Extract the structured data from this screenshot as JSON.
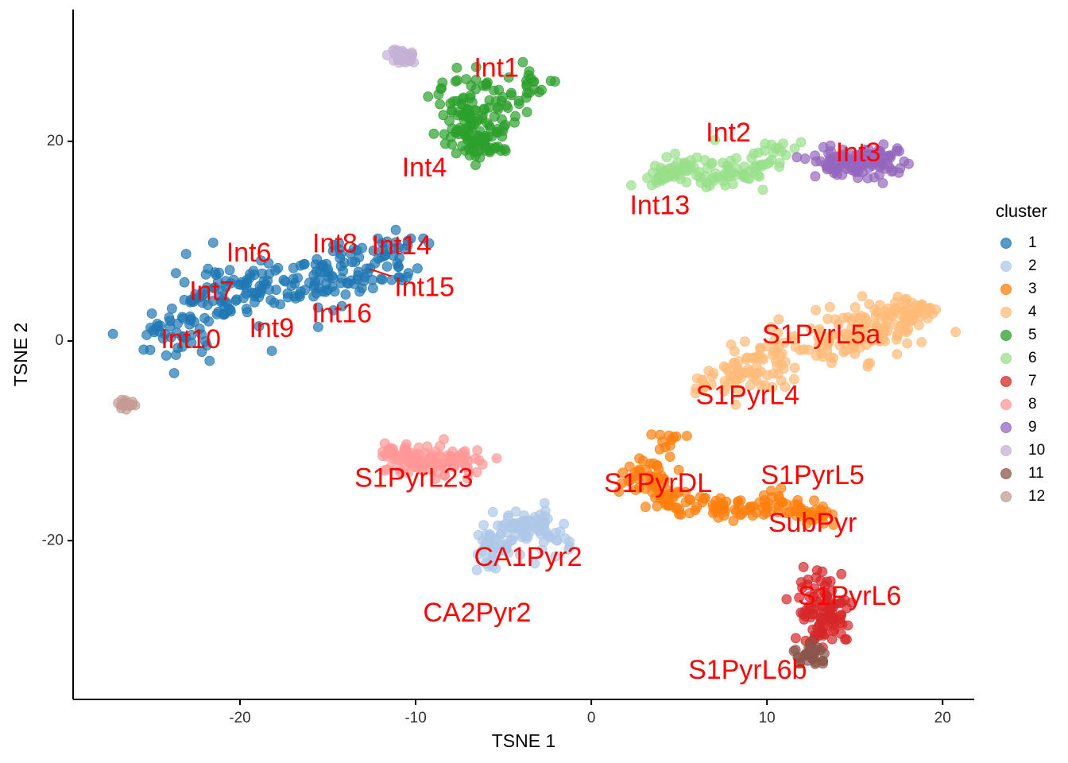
{
  "colors": {
    "1": "#1f77b4",
    "2": "#aec7e8",
    "3": "#ff7f0e",
    "4": "#ffbb78",
    "5": "#2ca02c",
    "6": "#98df8a",
    "7": "#d62728",
    "8": "#ff9896",
    "9": "#9467bd",
    "10": "#c5b0d5",
    "11": "#8c564b",
    "12": "#c49c94",
    "label": "#ff0000"
  },
  "chart_data": {
    "type": "scatter",
    "title": "",
    "xlabel": "TSNE 1",
    "ylabel": "TSNE 2",
    "xlim": [
      -29.5,
      21.8
    ],
    "ylim": [
      -35.9,
      33.2
    ],
    "xticks": [
      -20,
      -10,
      0,
      10,
      20
    ],
    "yticks": [
      -20,
      0,
      20
    ],
    "xtick_labels": [
      "-20",
      "-10",
      "0",
      "10",
      "20"
    ],
    "ytick_labels": [
      "-20",
      "0",
      "20"
    ],
    "grid": false,
    "legend": {
      "title": "cluster",
      "position": "right",
      "entries": [
        "1",
        "2",
        "3",
        "4",
        "5",
        "6",
        "7",
        "8",
        "9",
        "10",
        "11",
        "12"
      ]
    },
    "clusters": [
      {
        "id": "1",
        "segments": [
          [
            -24.5,
            -0.5,
            1.3
          ],
          [
            -22.5,
            3,
            1.6
          ],
          [
            -19.5,
            6,
            1.8
          ],
          [
            -16,
            5,
            1.8
          ],
          [
            -13.5,
            7,
            1.6
          ],
          [
            -11,
            9.5,
            1.2
          ]
        ],
        "n": 260
      },
      {
        "id": "2",
        "segments": [
          [
            -6,
            -23,
            1.0
          ],
          [
            -5,
            -19,
            0.9
          ],
          [
            -3.5,
            -18,
            0.8
          ],
          [
            -2,
            -20.5,
            0.8
          ]
        ],
        "n": 110
      },
      {
        "id": "3",
        "segments": [
          [
            4.5,
            -9.5,
            0.9
          ],
          [
            3,
            -14,
            0.8
          ],
          [
            5,
            -16.5,
            0.9
          ],
          [
            8,
            -16.5,
            0.9
          ],
          [
            11,
            -16.5,
            0.9
          ],
          [
            13.5,
            -18,
            0.6
          ]
        ],
        "n": 180
      },
      {
        "id": "4",
        "segments": [
          [
            7,
            -4,
            1.0
          ],
          [
            10,
            -2,
            1.6
          ],
          [
            13.5,
            0,
            1.8
          ],
          [
            17,
            2,
            1.5
          ],
          [
            19,
            3,
            0.8
          ]
        ],
        "n": 240
      },
      {
        "id": "5",
        "segments": [
          [
            -7,
            26.5,
            1.3
          ],
          [
            -7,
            22,
            1.2
          ],
          [
            -6.5,
            19,
            1.0
          ],
          [
            -3,
            27,
            1.0
          ]
        ],
        "n": 170
      },
      {
        "id": "6",
        "segments": [
          [
            3.5,
            16,
            0.7
          ],
          [
            5.5,
            17.5,
            0.9
          ],
          [
            8,
            16.5,
            1.0
          ],
          [
            11,
            19,
            0.9
          ]
        ],
        "n": 120
      },
      {
        "id": "7",
        "segments": [
          [
            13,
            -23.5,
            0.9
          ],
          [
            13,
            -27,
            1.0
          ],
          [
            13.5,
            -30,
            0.7
          ]
        ],
        "n": 100
      },
      {
        "id": "8",
        "segments": [
          [
            -11.5,
            -11.5,
            0.8
          ],
          [
            -9,
            -12,
            1.1
          ],
          [
            -7,
            -12,
            1.0
          ]
        ],
        "n": 110
      },
      {
        "id": "9",
        "segments": [
          [
            13,
            18,
            0.8
          ],
          [
            15.5,
            17.5,
            1.0
          ],
          [
            17,
            18.5,
            0.8
          ]
        ],
        "n": 110
      },
      {
        "id": "10",
        "segments": [
          [
            -10.8,
            28.5,
            0.5
          ]
        ],
        "n": 30
      },
      {
        "id": "11",
        "segments": [
          [
            12.5,
            -31.5,
            0.6
          ]
        ],
        "n": 30
      },
      {
        "id": "12",
        "segments": [
          [
            -26.5,
            -6.3,
            0.3
          ]
        ],
        "n": 20
      }
    ],
    "annotations": [
      {
        "text": "Int1",
        "x": -5.4,
        "y": 27.2
      },
      {
        "text": "Int4",
        "x": -9.5,
        "y": 17.2
      },
      {
        "text": "Int2",
        "x": 7.8,
        "y": 20.7
      },
      {
        "text": "Int3",
        "x": 15.2,
        "y": 18.7
      },
      {
        "text": "Int13",
        "x": 3.9,
        "y": 13.4
      },
      {
        "text": "Int6",
        "x": -19.5,
        "y": 8.7
      },
      {
        "text": "Int8",
        "x": -14.6,
        "y": 9.6
      },
      {
        "text": "Int14",
        "x": -10.8,
        "y": 9.4
      },
      {
        "text": "Int15",
        "x": -9.5,
        "y": 5.2
      },
      {
        "text": "Int7",
        "x": -21.6,
        "y": 4.8
      },
      {
        "text": "Int16",
        "x": -14.2,
        "y": 2.6
      },
      {
        "text": "Int9",
        "x": -18.2,
        "y": 1.1
      },
      {
        "text": "Int10",
        "x": -22.8,
        "y": 0
      },
      {
        "text": "S1PyrL5a",
        "x": 13.1,
        "y": 0.5
      },
      {
        "text": "S1PyrL4",
        "x": 8.9,
        "y": -5.6
      },
      {
        "text": "S1PyrL23",
        "x": -10.1,
        "y": -13.9
      },
      {
        "text": "S1PyrDL",
        "x": 3.8,
        "y": -14.4
      },
      {
        "text": "S1PyrL5",
        "x": 12.6,
        "y": -13.6
      },
      {
        "text": "SubPyr",
        "x": 12.6,
        "y": -18.4
      },
      {
        "text": "CA1Pyr2",
        "x": -3.6,
        "y": -21.8
      },
      {
        "text": "CA2Pyr2",
        "x": -6.5,
        "y": -27.4
      },
      {
        "text": "S1PyrL6",
        "x": 14.7,
        "y": -25.7
      },
      {
        "text": "S1PyrL6b",
        "x": 8.9,
        "y": -33.1
      }
    ]
  }
}
